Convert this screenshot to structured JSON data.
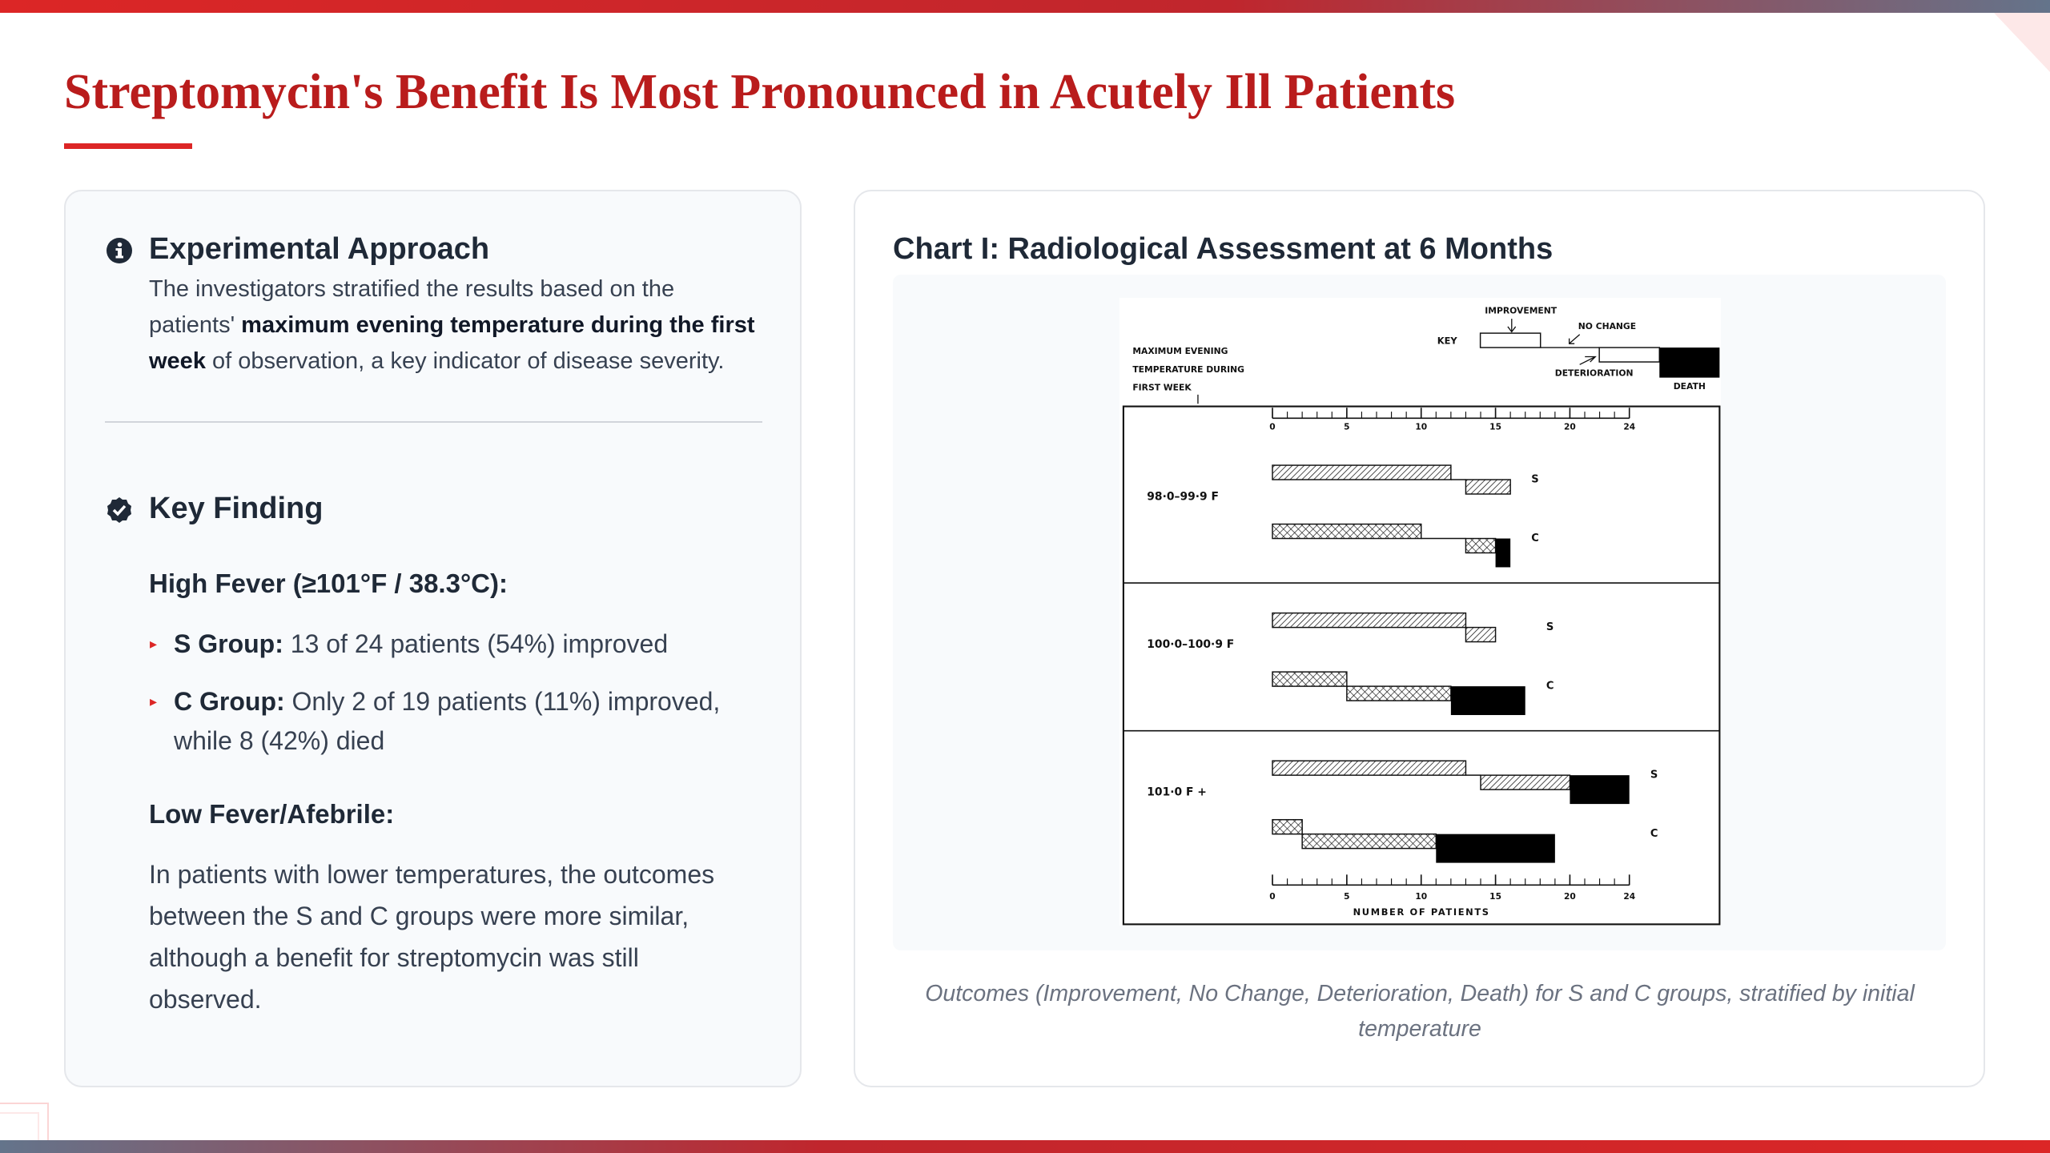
{
  "header": {
    "title": "Streptomycin's Benefit Is Most Pronounced in Acutely Ill Patients"
  },
  "approach": {
    "heading": "Experimental Approach",
    "text": [
      {
        "text": "The investigators stratified the results based on the patients' ",
        "bold": false
      },
      {
        "text": "maximum evening temperature during the first week",
        "bold": true
      },
      {
        "text": " of observation, a key indicator of disease severity.",
        "bold": false
      }
    ]
  },
  "finding": {
    "heading": "Key Finding",
    "high_fever": {
      "heading": "High Fever (≥101°F / 38.3°C):",
      "items": [
        {
          "label": "S Group:",
          "text": "13 of 24 patients (54%) improved"
        },
        {
          "label": "C Group:",
          "text": "Only 2 of 19 patients (11%) improved, while 8 (42%) died"
        }
      ]
    },
    "low_fever": {
      "heading": "Low Fever/Afebrile:",
      "text": "In patients with lower temperatures, the outcomes between the S and C groups were more similar, although a benefit for streptomycin was still observed."
    }
  },
  "chart_card": {
    "title": "Chart I: Radiological Assessment at 6 Months",
    "caption": "Outcomes (Improvement, No Change, Deterioration, Death) for S and C groups, stratified by initial temperature"
  },
  "chart_data": {
    "type": "bar",
    "orientation": "horizontal",
    "stacked": true,
    "key_label": "KEY",
    "y_label": [
      "MAXIMUM EVENING",
      "TEMPERATURE DURING",
      "FIRST WEEK"
    ],
    "x_label": "NUMBER OF PATIENTS",
    "outcomes": [
      "IMPROVEMENT",
      "NO CHANGE",
      "DETERIORATION",
      "DEATH"
    ],
    "xlim": [
      0,
      24
    ],
    "xticks": [
      0,
      5,
      10,
      15,
      20,
      24
    ],
    "groups": [
      {
        "name": "98·0–99·9 F",
        "rows": [
          {
            "name": "S",
            "hatch": "diagonal",
            "values": [
              12,
              1,
              3,
              0
            ]
          },
          {
            "name": "C",
            "hatch": "cross",
            "values": [
              10,
              3,
              2,
              1
            ]
          }
        ]
      },
      {
        "name": "100·0–100·9 F",
        "rows": [
          {
            "name": "S",
            "hatch": "diagonal",
            "values": [
              13,
              0,
              2,
              0
            ]
          },
          {
            "name": "C",
            "hatch": "cross",
            "values": [
              5,
              0,
              7,
              5
            ]
          }
        ]
      },
      {
        "name": "101·0 F +",
        "rows": [
          {
            "name": "S",
            "hatch": "diagonal",
            "values": [
              13,
              1,
              6,
              4
            ]
          },
          {
            "name": "C",
            "hatch": "cross",
            "values": [
              2,
              0,
              9,
              8
            ]
          }
        ]
      }
    ]
  }
}
